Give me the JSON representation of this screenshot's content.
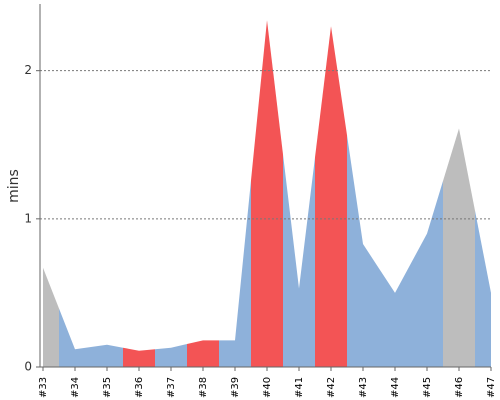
{
  "chart_data": {
    "type": "area",
    "y_label": "mins",
    "categories": [
      "#33",
      "#34",
      "#35",
      "#36",
      "#37",
      "#38",
      "#39",
      "#40",
      "#41",
      "#42",
      "#43",
      "#44",
      "#45",
      "#46",
      "#47"
    ],
    "values": [
      0.67,
      0.12,
      0.15,
      0.11,
      0.13,
      0.18,
      0.18,
      2.34,
      0.53,
      2.3,
      0.83,
      0.5,
      0.9,
      1.61,
      0.5
    ],
    "colors": [
      "#bdbdbd",
      "#8eb1da",
      "#8eb1da",
      "#f35455",
      "#8eb1da",
      "#f35455",
      "#8eb1da",
      "#f35455",
      "#8eb1da",
      "#f35455",
      "#8eb1da",
      "#8eb1da",
      "#8eb1da",
      "#bdbdbd",
      "#8eb1da"
    ],
    "ylim": [
      0,
      2.45
    ],
    "yticks": [
      0,
      1,
      2
    ],
    "grid": true
  }
}
